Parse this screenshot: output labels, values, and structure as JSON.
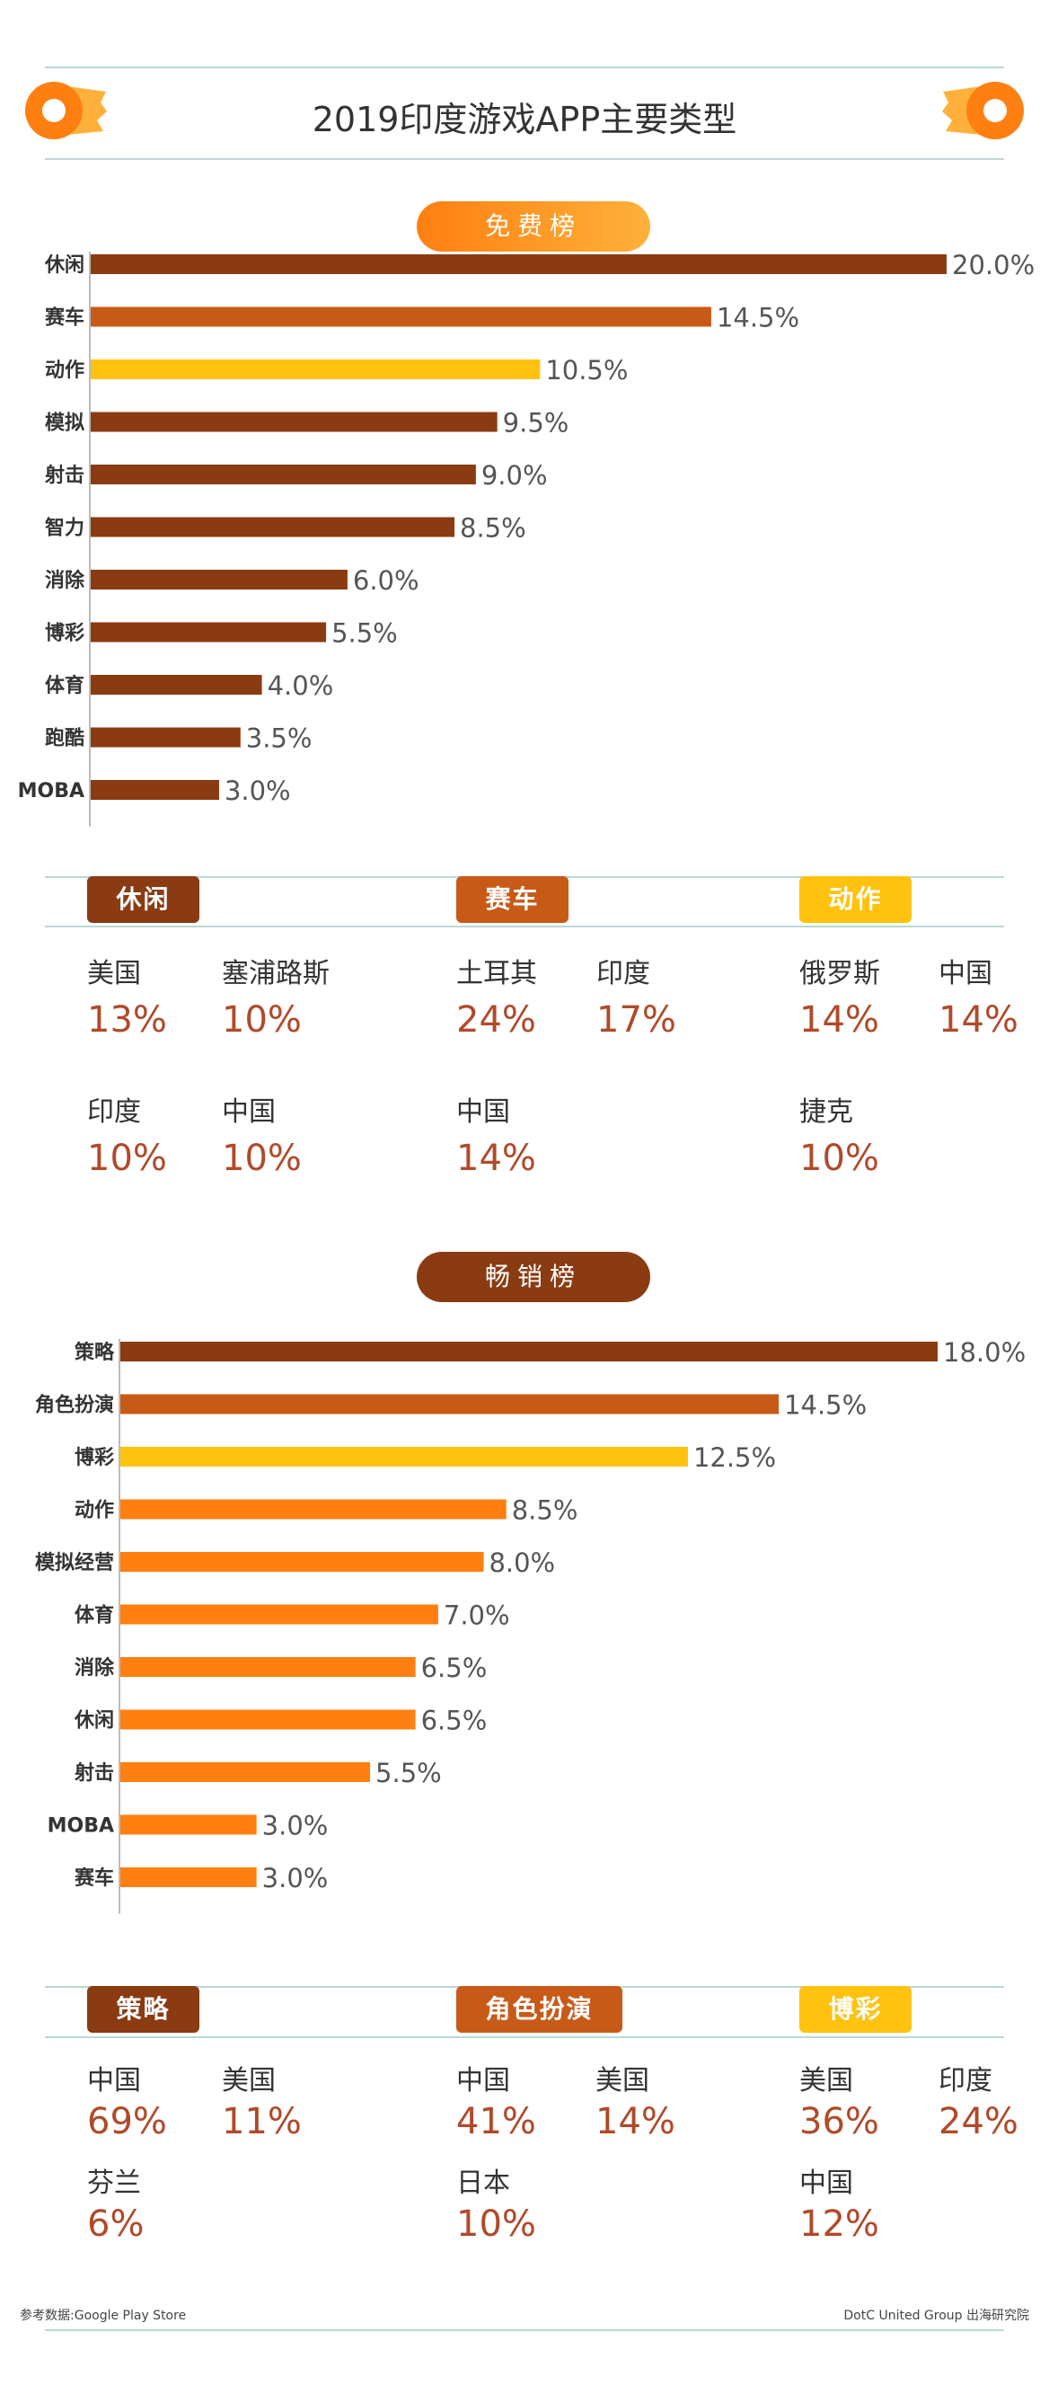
{
  "title": "2019印度游戏APP主要类型",
  "colors": {
    "dark": "#8a3b12",
    "mid": "#c85a18",
    "yellow": "#ffc20e",
    "orange": "#ff7f11",
    "pct_text": "#b04a2a",
    "line": "#b9d9d6"
  },
  "sections": [
    {
      "header": "免费榜",
      "chart_data": {
        "type": "bar",
        "orientation": "horizontal",
        "categories": [
          "休闲",
          "赛车",
          "动作",
          "模拟",
          "射击",
          "智力",
          "消除",
          "博彩",
          "体育",
          "跑酷",
          "MOBA"
        ],
        "values": [
          20.0,
          14.5,
          10.5,
          9.5,
          9.0,
          8.5,
          6.0,
          5.5,
          4.0,
          3.5,
          3.0
        ],
        "value_labels": [
          "20.0%",
          "14.5%",
          "10.5%",
          "9.5%",
          "9.0%",
          "8.5%",
          "6.0%",
          "5.5%",
          "4.0%",
          "3.5%",
          "3.0%"
        ],
        "bar_colors": [
          "#8a3b12",
          "#c85a18",
          "#ffc20e",
          "#8a3b12",
          "#8a3b12",
          "#8a3b12",
          "#8a3b12",
          "#8a3b12",
          "#8a3b12",
          "#8a3b12",
          "#8a3b12"
        ],
        "xlim": [
          0,
          20.0
        ],
        "unit": "%"
      },
      "details": [
        {
          "badge": "休闲",
          "badge_color": "#8a3b12",
          "entries": [
            {
              "country": "美国",
              "pct": "13%"
            },
            {
              "country": "塞浦路斯",
              "pct": "10%"
            },
            {
              "country": "印度",
              "pct": "10%"
            },
            {
              "country": "中国",
              "pct": "10%"
            }
          ]
        },
        {
          "badge": "赛车",
          "badge_color": "#c85a18",
          "entries": [
            {
              "country": "土耳其",
              "pct": "24%"
            },
            {
              "country": "印度",
              "pct": "17%"
            },
            {
              "country": "中国",
              "pct": "14%"
            }
          ]
        },
        {
          "badge": "动作",
          "badge_color": "#ffc20e",
          "entries": [
            {
              "country": "俄罗斯",
              "pct": "14%"
            },
            {
              "country": "中国",
              "pct": "14%"
            },
            {
              "country": "捷克",
              "pct": "10%"
            }
          ]
        }
      ]
    },
    {
      "header": "畅销榜",
      "chart_data": {
        "type": "bar",
        "orientation": "horizontal",
        "categories": [
          "策略",
          "角色扮演",
          "博彩",
          "动作",
          "模拟经营",
          "体育",
          "消除",
          "休闲",
          "射击",
          "MOBA",
          "赛车"
        ],
        "values": [
          18.0,
          14.5,
          12.5,
          8.5,
          8.0,
          7.0,
          6.5,
          6.5,
          5.5,
          3.0,
          3.0
        ],
        "value_labels": [
          "18.0%",
          "14.5%",
          "12.5%",
          "8.5%",
          "8.0%",
          "7.0%",
          "6.5%",
          "6.5%",
          "5.5%",
          "3.0%",
          "3.0%"
        ],
        "bar_colors": [
          "#8a3b12",
          "#c85a18",
          "#ffc20e",
          "#ff7f11",
          "#ff7f11",
          "#ff7f11",
          "#ff7f11",
          "#ff7f11",
          "#ff7f11",
          "#ff7f11",
          "#ff7f11"
        ],
        "xlim": [
          0,
          18.0
        ],
        "unit": "%"
      },
      "details": [
        {
          "badge": "策略",
          "badge_color": "#8a3b12",
          "entries": [
            {
              "country": "中国",
              "pct": "69%"
            },
            {
              "country": "美国",
              "pct": "11%"
            },
            {
              "country": "芬兰",
              "pct": "6%"
            }
          ]
        },
        {
          "badge": "角色扮演",
          "badge_color": "#c85a18",
          "entries": [
            {
              "country": "中国",
              "pct": "41%"
            },
            {
              "country": "美国",
              "pct": "14%"
            },
            {
              "country": "日本",
              "pct": "10%"
            }
          ]
        },
        {
          "badge": "博彩",
          "badge_color": "#ffc20e",
          "entries": [
            {
              "country": "美国",
              "pct": "36%"
            },
            {
              "country": "印度",
              "pct": "24%"
            },
            {
              "country": "中国",
              "pct": "12%"
            }
          ]
        }
      ]
    }
  ],
  "footer": {
    "left": "参考数据:Google Play Store",
    "right": "DotC United Group  出海研究院"
  },
  "icons": [
    "donut-logo-icon",
    "donut-logo-icon"
  ]
}
